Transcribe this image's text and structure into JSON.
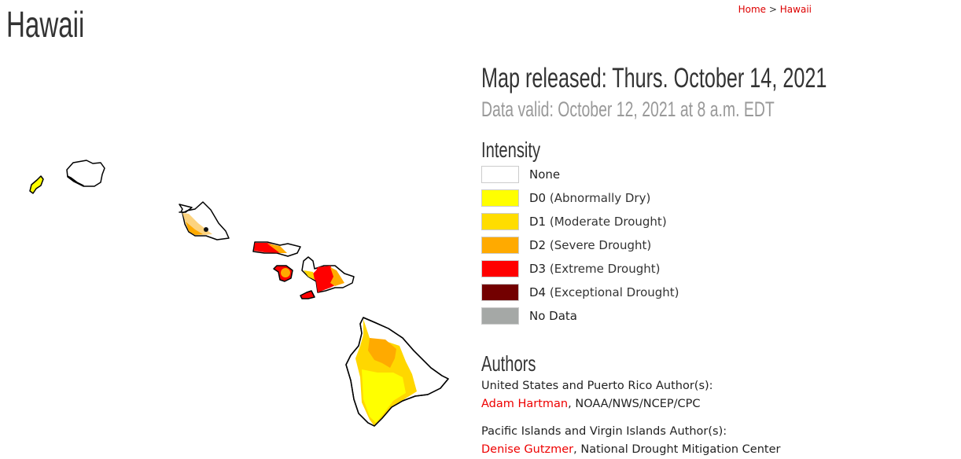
{
  "page": {
    "title": "Hawaii"
  },
  "breadcrumb": {
    "home": "Home",
    "separator": ">",
    "current": "Hawaii"
  },
  "map_info": {
    "released": "Map released: Thurs. October 14, 2021",
    "valid": "Data valid: October 12, 2021 at 8 a.m. EDT"
  },
  "legend": {
    "title": "Intensity",
    "items": [
      {
        "code": "",
        "label": "None",
        "color": "#ffffff"
      },
      {
        "code": "D0",
        "label": "(Abnormally Dry)",
        "color": "#ffff00"
      },
      {
        "code": "D1",
        "label": "(Moderate Drought)",
        "color": "#fcd37f"
      },
      {
        "code": "D2",
        "label": "(Severe Drought)",
        "color": "#ffaa00"
      },
      {
        "code": "D3",
        "label": "(Extreme Drought)",
        "color": "#ff0000"
      },
      {
        "code": "D4",
        "label": "(Exceptional Drought)",
        "color": "#730000"
      },
      {
        "code": "",
        "label": "No Data",
        "color": "#a5a8a6"
      }
    ]
  },
  "authors": {
    "title": "Authors",
    "us_heading": "United States and Puerto Rico Author(s):",
    "us_name": "Adam Hartman",
    "us_org": ", NOAA/NWS/NCEP/CPC",
    "pi_heading": "Pacific Islands and Virgin Islands Author(s):",
    "pi_name": "Denise Gutzmer",
    "pi_org": ", National Drought Mitigation Center"
  }
}
